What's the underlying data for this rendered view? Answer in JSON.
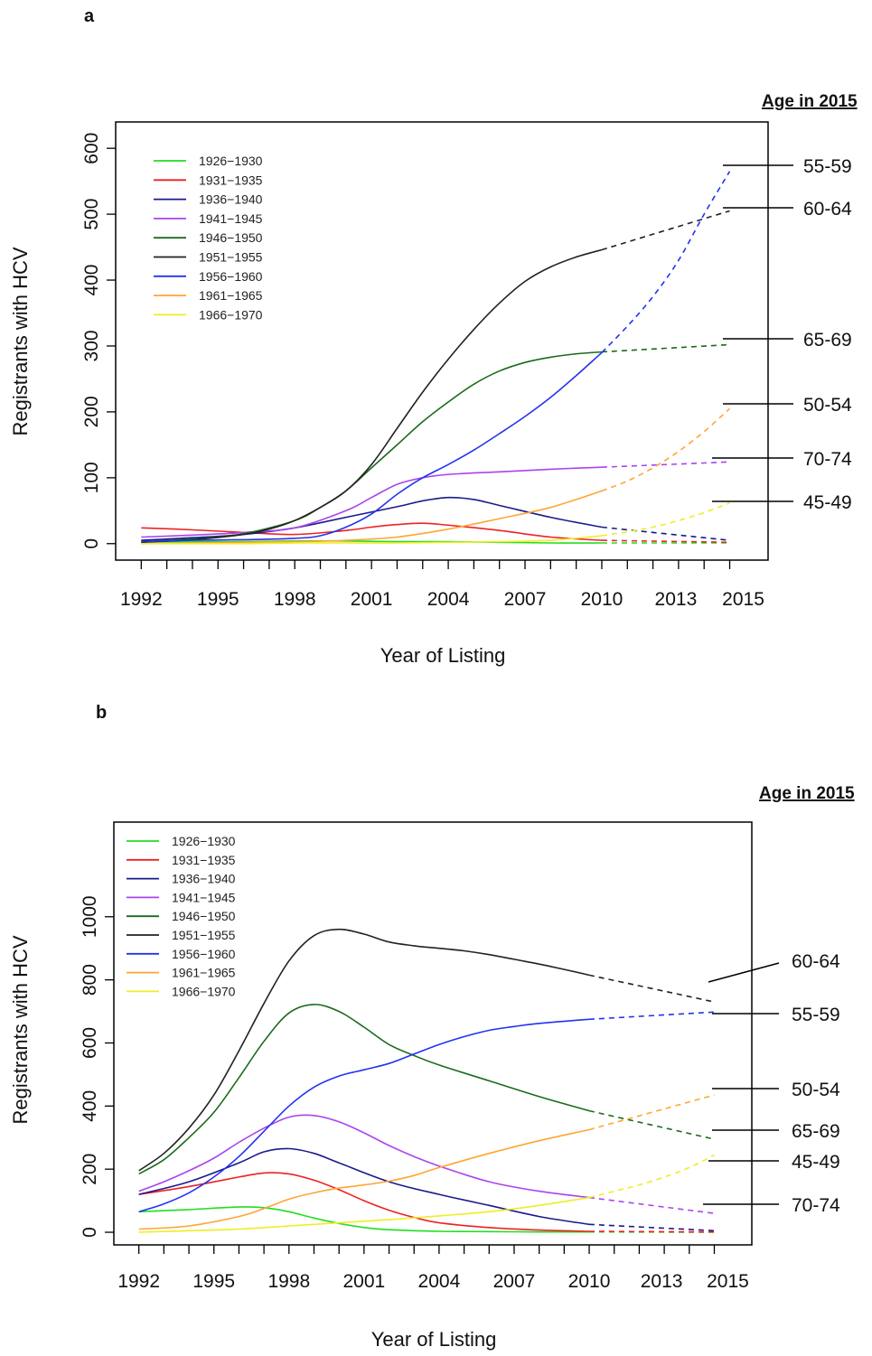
{
  "chart_data": [
    {
      "panel": "a",
      "type": "line",
      "xlabel": "Year of Listing",
      "ylabel": "Registrants with HCV",
      "xlim": [
        1991,
        2016.5
      ],
      "ylim": [
        -25,
        640
      ],
      "x_tick_labels": [
        1992,
        1995,
        1998,
        2001,
        2004,
        2007,
        2010,
        2013,
        2015
      ],
      "y_tick_labels": [
        0,
        100,
        200,
        300,
        400,
        500,
        600
      ],
      "observed_until": 2010,
      "projection_style": "dashed",
      "legend_position": "top-left",
      "age_header": "Age in 2015",
      "series": [
        {
          "name": "1926−1930",
          "color": "#22dd22",
          "age": "",
          "x": [
            1992,
            1994,
            1996,
            1998,
            2000,
            2002,
            2004,
            2006,
            2008,
            2010,
            2015
          ],
          "y": [
            3,
            3,
            3,
            4,
            4,
            3,
            3,
            2,
            1,
            1,
            1
          ]
        },
        {
          "name": "1931−1935",
          "color": "#ee2222",
          "age": "",
          "x": [
            1992,
            1994,
            1996,
            1998,
            2000,
            2001,
            2002,
            2003,
            2004,
            2006,
            2008,
            2010,
            2015
          ],
          "y": [
            24,
            21,
            17,
            14,
            20,
            25,
            29,
            31,
            28,
            20,
            10,
            5,
            2
          ]
        },
        {
          "name": "1936−1940",
          "color": "#1a1a8c",
          "age": "",
          "x": [
            1992,
            1994,
            1996,
            1998,
            2000,
            2002,
            2003,
            2004,
            2005,
            2006,
            2008,
            2010,
            2015
          ],
          "y": [
            5,
            9,
            14,
            24,
            40,
            56,
            65,
            70,
            67,
            58,
            40,
            25,
            5
          ]
        },
        {
          "name": "1941−1945",
          "color": "#aa44ee",
          "age": "70-74",
          "x": [
            1992,
            1994,
            1996,
            1998,
            2000,
            2001,
            2002,
            2003,
            2004,
            2006,
            2008,
            2010,
            2015
          ],
          "y": [
            10,
            13,
            17,
            24,
            50,
            70,
            90,
            100,
            105,
            109,
            113,
            116,
            124
          ]
        },
        {
          "name": "1946−1950",
          "color": "#1b6b1b",
          "age": "65-69",
          "x": [
            1992,
            1994,
            1996,
            1998,
            1999,
            2000,
            2001,
            2002,
            2003,
            2004,
            2005,
            2006,
            2007,
            2008,
            2009,
            2010,
            2015
          ],
          "y": [
            3,
            7,
            15,
            35,
            55,
            80,
            115,
            150,
            185,
            215,
            242,
            262,
            275,
            283,
            288,
            291,
            302
          ]
        },
        {
          "name": "1951−1955",
          "color": "#222222",
          "age": "60-64",
          "x": [
            1992,
            1994,
            1996,
            1997,
            1998,
            1999,
            2000,
            2001,
            2002,
            2003,
            2004,
            2005,
            2006,
            2007,
            2008,
            2009,
            2010,
            2015
          ],
          "y": [
            2,
            6,
            14,
            22,
            35,
            55,
            80,
            120,
            175,
            230,
            280,
            325,
            365,
            398,
            420,
            435,
            446,
            505
          ]
        },
        {
          "name": "1956−1960",
          "color": "#2233ee",
          "age": "55-59",
          "x": [
            1992,
            1994,
            1996,
            1998,
            1999,
            2000,
            2001,
            2002,
            2003,
            2004,
            2005,
            2006,
            2007,
            2008,
            2009,
            2010,
            2011,
            2012,
            2013,
            2014,
            2015
          ],
          "y": [
            3,
            5,
            6,
            8,
            12,
            25,
            45,
            75,
            100,
            120,
            142,
            167,
            193,
            222,
            255,
            290,
            330,
            375,
            430,
            500,
            565
          ]
        },
        {
          "name": "1961−1965",
          "color": "#ffa533",
          "age": "50-54",
          "x": [
            1992,
            1994,
            1996,
            1998,
            2000,
            2002,
            2004,
            2006,
            2008,
            2010,
            2011,
            2012,
            2013,
            2014,
            2015
          ],
          "y": [
            0,
            1,
            2,
            3,
            5,
            10,
            22,
            38,
            55,
            80,
            95,
            115,
            140,
            170,
            205
          ]
        },
        {
          "name": "1966−1970",
          "color": "#eeee22",
          "age": "45-49",
          "x": [
            1992,
            1994,
            1996,
            1998,
            2000,
            2002,
            2004,
            2006,
            2008,
            2010,
            2011,
            2012,
            2013,
            2014,
            2015
          ],
          "y": [
            0,
            0,
            0,
            1,
            1,
            1,
            2,
            3,
            5,
            12,
            18,
            25,
            35,
            47,
            62
          ]
        }
      ]
    },
    {
      "panel": "b",
      "type": "line",
      "xlabel": "Year of Listing",
      "ylabel": "Registrants with HCV",
      "xlim": [
        1991,
        2016.5
      ],
      "ylim": [
        -40,
        1300
      ],
      "x_tick_labels": [
        1992,
        1995,
        1998,
        2001,
        2004,
        2007,
        2010,
        2013,
        2015
      ],
      "y_tick_labels": [
        0,
        200,
        400,
        600,
        800,
        1000
      ],
      "observed_until": 2010,
      "projection_style": "dashed",
      "legend_position": "top-left",
      "age_header": "Age in 2015",
      "series": [
        {
          "name": "1926−1930",
          "color": "#22dd22",
          "age": "",
          "x": [
            1992,
            1994,
            1996,
            1997,
            1998,
            1999,
            2000,
            2001,
            2002,
            2004,
            2006,
            2008,
            2010,
            2015
          ],
          "y": [
            65,
            72,
            80,
            78,
            65,
            45,
            28,
            15,
            8,
            3,
            2,
            1,
            1,
            0
          ]
        },
        {
          "name": "1931−1935",
          "color": "#ee2222",
          "age": "",
          "x": [
            1992,
            1994,
            1996,
            1997,
            1998,
            1999,
            2000,
            2001,
            2002,
            2003,
            2004,
            2006,
            2008,
            2010,
            2015
          ],
          "y": [
            120,
            145,
            175,
            188,
            185,
            165,
            135,
            100,
            70,
            47,
            30,
            15,
            7,
            3,
            1
          ]
        },
        {
          "name": "1936−1940",
          "color": "#1a1a8c",
          "age": "",
          "x": [
            1992,
            1994,
            1996,
            1997,
            1998,
            1999,
            2000,
            2002,
            2004,
            2006,
            2008,
            2010,
            2015
          ],
          "y": [
            120,
            160,
            220,
            255,
            265,
            250,
            220,
            160,
            120,
            85,
            50,
            25,
            5
          ]
        },
        {
          "name": "1941−1945",
          "color": "#aa44ee",
          "age": "70-74",
          "x": [
            1992,
            1993,
            1994,
            1995,
            1996,
            1997,
            1998,
            1999,
            2000,
            2001,
            2002,
            2003,
            2004,
            2006,
            2008,
            2010,
            2015
          ],
          "y": [
            130,
            160,
            195,
            235,
            285,
            330,
            365,
            370,
            350,
            315,
            275,
            240,
            210,
            160,
            130,
            110,
            60
          ]
        },
        {
          "name": "1946−1950",
          "color": "#1b6b1b",
          "age": "65-69",
          "x": [
            1992,
            1993,
            1994,
            1995,
            1996,
            1997,
            1998,
            1999,
            2000,
            2001,
            2002,
            2003,
            2004,
            2006,
            2008,
            2010,
            2015
          ],
          "y": [
            185,
            230,
            300,
            380,
            490,
            605,
            695,
            722,
            700,
            650,
            595,
            560,
            530,
            480,
            430,
            385,
            295
          ]
        },
        {
          "name": "1951−1955",
          "color": "#222222",
          "age": "60-64",
          "x": [
            1992,
            1993,
            1994,
            1995,
            1996,
            1997,
            1998,
            1999,
            2000,
            2001,
            2002,
            2003,
            2004,
            2005,
            2006,
            2007,
            2008,
            2009,
            2010,
            2015
          ],
          "y": [
            195,
            250,
            330,
            435,
            575,
            725,
            860,
            940,
            960,
            945,
            920,
            908,
            900,
            892,
            880,
            865,
            850,
            833,
            815,
            730
          ]
        },
        {
          "name": "1956−1960",
          "color": "#2233ee",
          "age": "55-59",
          "x": [
            1992,
            1993,
            1994,
            1995,
            1996,
            1997,
            1998,
            1999,
            2000,
            2001,
            2002,
            2003,
            2004,
            2005,
            2006,
            2007,
            2008,
            2010,
            2015
          ],
          "y": [
            65,
            90,
            125,
            175,
            240,
            320,
            400,
            460,
            495,
            515,
            535,
            565,
            595,
            620,
            640,
            652,
            662,
            675,
            698
          ]
        },
        {
          "name": "1961−1965",
          "color": "#ffa533",
          "age": "50-54",
          "x": [
            1992,
            1994,
            1996,
            1997,
            1998,
            1999,
            2000,
            2001,
            2002,
            2003,
            2004,
            2006,
            2008,
            2010,
            2015
          ],
          "y": [
            10,
            20,
            50,
            75,
            105,
            125,
            140,
            150,
            162,
            180,
            205,
            250,
            290,
            325,
            435
          ]
        },
        {
          "name": "1966−1970",
          "color": "#eeee22",
          "age": "45-49",
          "x": [
            1992,
            1994,
            1996,
            1998,
            2000,
            2002,
            2004,
            2006,
            2008,
            2010,
            2011,
            2012,
            2013,
            2014,
            2015
          ],
          "y": [
            0,
            5,
            10,
            20,
            30,
            40,
            52,
            65,
            85,
            110,
            130,
            150,
            175,
            205,
            245
          ]
        }
      ]
    }
  ]
}
